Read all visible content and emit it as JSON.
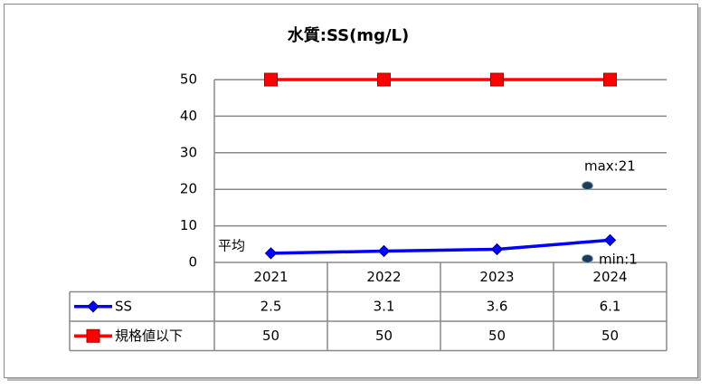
{
  "chart_data": {
    "type": "line",
    "title": "水質:SS(mg/L)",
    "categories": [
      "2021",
      "2022",
      "2023",
      "2024"
    ],
    "series": [
      {
        "name": "SS",
        "color": "#0000ff",
        "marker": "diamond",
        "values": [
          2.5,
          3.1,
          3.6,
          6.1
        ]
      },
      {
        "name": "規格値以下",
        "color": "#ff0000",
        "marker": "square",
        "values": [
          50,
          50,
          50,
          50
        ]
      }
    ],
    "ylim": [
      0,
      50
    ],
    "yticks": [
      0,
      10,
      20,
      30,
      40,
      50
    ],
    "grid": true,
    "data_table": true,
    "annotations": [
      {
        "text": "平均"
      },
      {
        "text": "max:21",
        "value": 21
      },
      {
        "text": "min:1",
        "value": 1
      }
    ]
  }
}
